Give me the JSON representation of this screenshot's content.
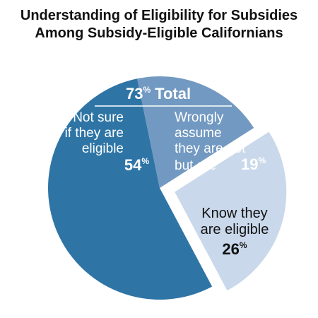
{
  "title": {
    "line1": "Understanding of Eligibility for Subsidies",
    "line2": "Among Subsidy-Eligible Californians"
  },
  "chart_data": {
    "type": "pie",
    "title": "Understanding of Eligibility for Subsidies Among Subsidy-Eligible Californians",
    "slices": [
      {
        "lines": [
          "Not sure",
          "if they are",
          "eligible"
        ],
        "value": 54,
        "value_label": "54",
        "color": "#2e75a6",
        "exploded": false
      },
      {
        "lines": [
          "Wrongly",
          "assume",
          "they are not",
          "but are"
        ],
        "value": 19,
        "value_label": "19",
        "color": "#7299c1",
        "exploded": false
      },
      {
        "lines": [
          "Know they",
          "are eligible"
        ],
        "value": 26,
        "value_label": "26",
        "color": "#c9d8ea",
        "exploded": true
      }
    ],
    "group_annotation": {
      "value": 73,
      "value_label": "73",
      "label": "Total"
    },
    "percent_sign": "%"
  }
}
